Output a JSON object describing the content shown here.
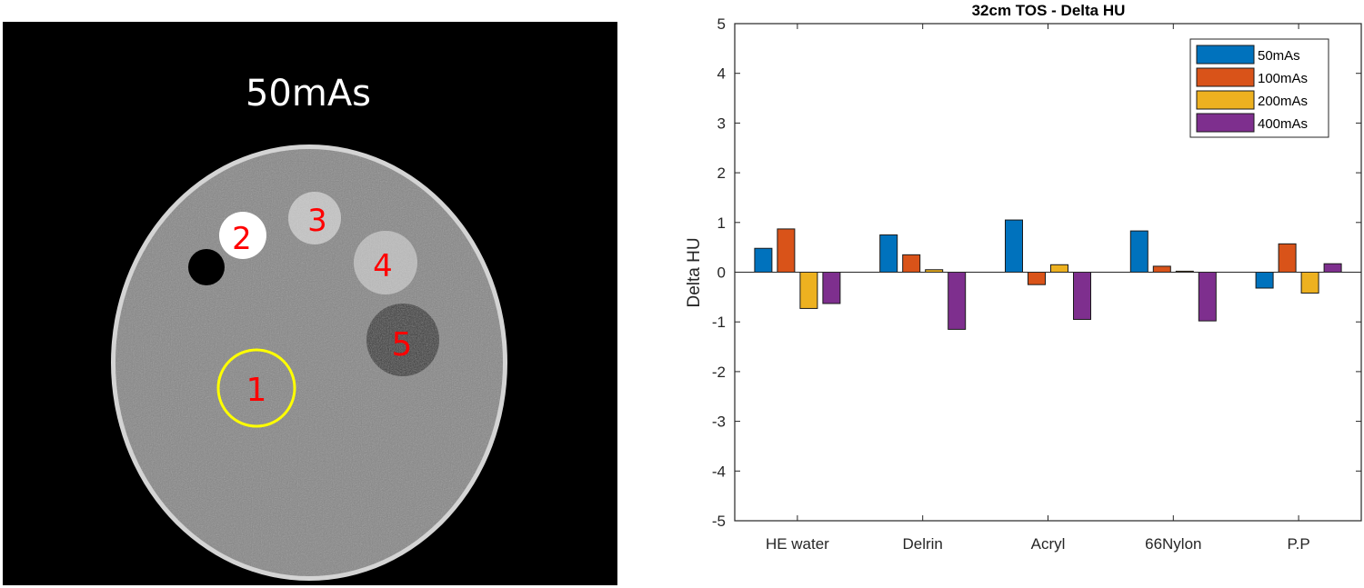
{
  "ct_image": {
    "label": "50mAs",
    "roi_labels": [
      "1",
      "2",
      "3",
      "4",
      "5"
    ],
    "colors": {
      "background": "#000000",
      "phantom": "#8a8a8a",
      "rim": "#d0d0d0",
      "roi_circle": "#ffff00",
      "roi_text": "#ff0000"
    }
  },
  "chart_data": {
    "type": "bar",
    "title": "32cm TOS - Delta HU",
    "xlabel": "",
    "ylabel": "Delta HU",
    "ylim": [
      -5,
      5
    ],
    "yticks": [
      5,
      4,
      3,
      2,
      1,
      0,
      -1,
      -2,
      -3,
      -4,
      -5
    ],
    "grid": false,
    "legend_position": "top-right",
    "categories": [
      "HE water",
      "Delrin",
      "Acryl",
      "66Nylon",
      "P.P"
    ],
    "series": [
      {
        "name": "50mAs",
        "color": "#0072BD",
        "values": [
          0.48,
          0.75,
          1.05,
          0.83,
          -0.32
        ]
      },
      {
        "name": "100mAs",
        "color": "#D95319",
        "values": [
          0.87,
          0.35,
          -0.25,
          0.12,
          0.57
        ]
      },
      {
        "name": "200mAs",
        "color": "#EDB120",
        "values": [
          -0.73,
          0.05,
          0.15,
          0.02,
          -0.42
        ]
      },
      {
        "name": "400mAs",
        "color": "#7E2F8E",
        "values": [
          -0.63,
          -1.15,
          -0.95,
          -0.98,
          0.17
        ]
      }
    ]
  }
}
